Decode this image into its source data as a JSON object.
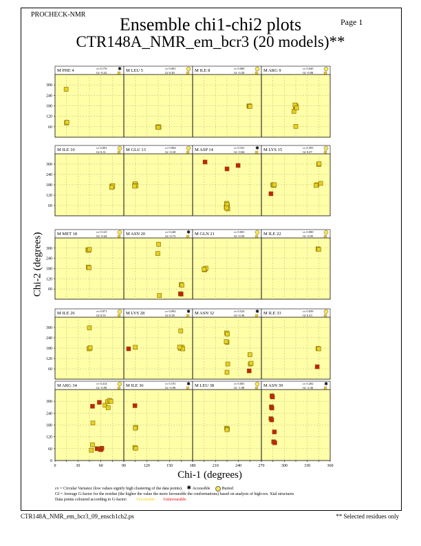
{
  "header": {
    "program": "PROCHECK-NMR",
    "page": "Page 1",
    "title_line1": "Ensemble chi1-chi2 plots",
    "title_line2": "CTR148A_NMR_em_bcr3 (20 models)**"
  },
  "axes": {
    "xlabel": "Chi-1 (degrees)",
    "ylabel": "Chi-2 (degrees)",
    "x_ticks": [
      "0",
      "60",
      "120",
      "180",
      "240",
      "300",
      "360"
    ],
    "y_ticks": [
      "60",
      "120",
      "180",
      "240",
      "300"
    ],
    "x_tick_values": [
      0,
      60,
      120,
      180,
      240,
      300,
      360
    ],
    "y_tick_values": [
      60,
      120,
      180,
      240,
      300
    ],
    "y_zero_label": "0"
  },
  "legend": {
    "cv_line": "cv = Circular Variance (low values signify high clustering of the data points).",
    "accessible_label": "Accessible",
    "buried_label": "Buried",
    "gf_line": "Gf = Average G-factor for the residue (the higher the value the more favourable the conformations) based on analysis of high-res. Xtal structures",
    "colour_line": "Data points coloured according to G-factor:",
    "favourable": "Favourable",
    "unfavourable": "Unfavourable"
  },
  "footer": {
    "filename": "CTR148A_NMR_em_bcr3_09_ensch1ch2.ps",
    "note": "** Selected residues only"
  },
  "colors": {
    "panel_bg": "#ffffa8",
    "favourable": "#e8d020",
    "unfavourable": "#c82010",
    "grid": "#b8b080"
  },
  "chart_data": {
    "type": "scatter",
    "xlim": [
      0,
      360
    ],
    "ylim": [
      0,
      360
    ],
    "grid": true,
    "panels": [
      {
        "residue": "M PHE 4",
        "cv": "cv 0.176",
        "gf": "Gf -0.43",
        "accessibility": "accessible",
        "points": [
          [
            58,
            275,
            0
          ],
          [
            60,
            82,
            0
          ],
          [
            62,
            86,
            0
          ]
        ]
      },
      {
        "residue": "M LEU 5",
        "cv": "cv 0.001",
        "gf": "Gf 0.49",
        "accessibility": "buried",
        "points": [
          [
            178,
            58,
            0
          ],
          [
            181,
            60,
            0
          ],
          [
            184,
            57,
            0
          ],
          [
            180,
            56,
            0
          ]
        ]
      },
      {
        "residue": "M ILE 8",
        "cv": "cv 0.000",
        "gf": "Gf -0.30",
        "accessibility": "buried",
        "points": [
          [
            295,
            178,
            0
          ],
          [
            298,
            180,
            0
          ],
          [
            300,
            176,
            0
          ]
        ]
      },
      {
        "residue": "M ARG 9",
        "cv": "cv 0.045",
        "gf": "Gf -0.98",
        "accessibility": "buried",
        "points": [
          [
            170,
            148,
            0
          ],
          [
            178,
            170,
            0
          ],
          [
            180,
            180,
            0
          ],
          [
            182,
            175,
            0
          ],
          [
            176,
            185,
            0
          ],
          [
            184,
            168,
            0
          ],
          [
            180,
            62,
            0
          ]
        ]
      },
      {
        "residue": "M ILE 10",
        "cv": "cv 0.001",
        "gf": "Gf 0.31",
        "accessibility": "buried",
        "points": [
          [
            298,
            172,
            0
          ],
          [
            300,
            168,
            0
          ],
          [
            302,
            175,
            0
          ],
          [
            296,
            165,
            0
          ]
        ]
      },
      {
        "residue": "M GLU 13",
        "cv": "cv 0.004",
        "gf": "Gf -0.18",
        "accessibility": "buried",
        "points": [
          [
            58,
            182,
            0
          ],
          [
            62,
            178,
            0
          ],
          [
            60,
            186,
            0
          ],
          [
            64,
            174,
            0
          ],
          [
            56,
            172,
            0
          ]
        ]
      },
      {
        "residue": "M ASP 14",
        "cv": "cv 0.161",
        "gf": "Gf -0.84",
        "accessibility": "accessible",
        "points": [
          [
            65,
            312,
            1
          ],
          [
            180,
            272,
            1
          ],
          [
            238,
            292,
            1
          ],
          [
            178,
            72,
            0
          ],
          [
            182,
            60,
            0
          ],
          [
            176,
            50,
            0
          ],
          [
            184,
            40,
            0
          ],
          [
            180,
            66,
            0
          ],
          [
            178,
            45,
            0
          ]
        ]
      },
      {
        "residue": "M LYS 15",
        "cv": "cv 0.393",
        "gf": "Gf 0.07",
        "accessibility": "buried",
        "points": [
          [
            300,
            298,
            0
          ],
          [
            302,
            302,
            0
          ],
          [
            60,
            180,
            0
          ],
          [
            64,
            176,
            0
          ],
          [
            68,
            180,
            0
          ],
          [
            290,
            180,
            0
          ],
          [
            286,
            176,
            0
          ],
          [
            310,
            188,
            0
          ],
          [
            50,
            128,
            1
          ]
        ]
      },
      {
        "residue": "M MET 18",
        "cv": "cv 0.125",
        "gf": "Gf -0.44",
        "accessibility": "buried",
        "points": [
          [
            172,
            290,
            0
          ],
          [
            176,
            286,
            0
          ],
          [
            180,
            292,
            0
          ],
          [
            174,
            188,
            0
          ],
          [
            178,
            184,
            0
          ]
        ]
      },
      {
        "residue": "M ASN 20",
        "cv": "cv 0.240",
        "gf": "Gf -0.73",
        "accessibility": "accessible",
        "points": [
          [
            182,
            322,
            0
          ],
          [
            178,
            268,
            0
          ],
          [
            300,
            86,
            0
          ],
          [
            304,
            82,
            0
          ],
          [
            296,
            32,
            1
          ],
          [
            300,
            30,
            1
          ],
          [
            186,
            22,
            0
          ]
        ]
      },
      {
        "residue": "M GLN 21",
        "cv": "cv 0.001",
        "gf": "Gf -0.50",
        "accessibility": "buried",
        "points": [
          [
            62,
            172,
            0
          ],
          [
            66,
            178,
            0
          ],
          [
            70,
            182,
            0
          ],
          [
            60,
            176,
            0
          ]
        ]
      },
      {
        "residue": "M ILE 22",
        "cv": "cv 0.000",
        "gf": "Gf -0.95",
        "accessibility": "buried",
        "points": [
          [
            296,
            295,
            0
          ],
          [
            300,
            292,
            0
          ]
        ]
      },
      {
        "residue": "M ILE 26",
        "cv": "cv 0.071",
        "gf": "Gf 0.55",
        "accessibility": "buried",
        "points": [
          [
            180,
            298,
            0
          ],
          [
            182,
            180,
            0
          ],
          [
            178,
            176,
            0
          ],
          [
            184,
            182,
            0
          ]
        ]
      },
      {
        "residue": "M LYS 28",
        "cv": "cv 0.092",
        "gf": "Gf 0.38",
        "accessibility": "accessible",
        "points": [
          [
            60,
            185,
            0
          ],
          [
            300,
            182,
            0
          ],
          [
            304,
            186,
            0
          ],
          [
            296,
            178,
            0
          ],
          [
            308,
            176,
            0
          ],
          [
            292,
            186,
            0
          ],
          [
            298,
            280,
            0
          ],
          [
            25,
            176,
            1
          ]
        ]
      },
      {
        "residue": "M ASN 32",
        "cv": "cv 0.524",
        "gf": "Gf -0.36",
        "accessibility": "accessible",
        "points": [
          [
            178,
            268,
            0
          ],
          [
            182,
            262,
            0
          ],
          [
            180,
            214,
            0
          ],
          [
            176,
            218,
            0
          ],
          [
            184,
            88,
            0
          ],
          [
            180,
            40,
            0
          ],
          [
            300,
            142,
            0
          ],
          [
            302,
            88,
            0
          ],
          [
            306,
            92,
            0
          ],
          [
            296,
            48,
            1
          ]
        ]
      },
      {
        "residue": "M ILE 33",
        "cv": "cv 0.039",
        "gf": "Gf 0.23",
        "accessibility": "buried",
        "points": [
          [
            296,
            178,
            0
          ],
          [
            300,
            176,
            0
          ],
          [
            292,
            72,
            1
          ]
        ]
      },
      {
        "residue": "M ARG 34",
        "cv": "cv 0.414",
        "gf": "Gf -0.99",
        "accessibility": "buried",
        "points": [
          [
            196,
            275,
            1
          ],
          [
            232,
            295,
            1
          ],
          [
            262,
            280,
            0
          ],
          [
            275,
            298,
            0
          ],
          [
            285,
            305,
            0
          ],
          [
            292,
            300,
            0
          ],
          [
            278,
            268,
            0
          ],
          [
            198,
            190,
            0
          ],
          [
            196,
            80,
            0
          ],
          [
            220,
            60,
            1
          ],
          [
            235,
            58,
            1
          ],
          [
            245,
            62,
            1
          ],
          [
            240,
            55,
            1
          ],
          [
            190,
            52,
            0
          ]
        ]
      },
      {
        "residue": "M ILE 36",
        "cv": "cv 0.191",
        "gf": "Gf -0.99",
        "accessibility": "accessible",
        "points": [
          [
            58,
            278,
            1
          ],
          [
            62,
            168,
            0
          ],
          [
            60,
            164,
            0
          ],
          [
            58,
            66,
            0
          ],
          [
            62,
            62,
            0
          ]
        ]
      },
      {
        "residue": "M LEU 38",
        "cv": "cv 0.001",
        "gf": "Gf -1.08",
        "accessibility": "buried",
        "points": [
          [
            178,
            164,
            0
          ],
          [
            182,
            160,
            0
          ],
          [
            180,
            156,
            0
          ]
        ]
      },
      {
        "residue": "M ASN 39",
        "cv": "cv 0.282",
        "gf": "Gf -2.36",
        "accessibility": "accessible",
        "points": [
          [
            55,
            328,
            1
          ],
          [
            58,
            322,
            1
          ],
          [
            52,
            272,
            1
          ],
          [
            55,
            266,
            1
          ],
          [
            50,
            212,
            1
          ],
          [
            54,
            206,
            1
          ],
          [
            68,
            145,
            1
          ],
          [
            64,
            95,
            1
          ],
          [
            70,
            90,
            1
          ]
        ]
      }
    ]
  }
}
